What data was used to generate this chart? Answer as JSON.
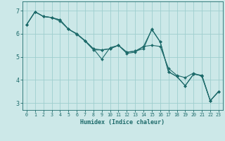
{
  "xlabel": "Humidex (Indice chaleur)",
  "bg_color": "#cce8e8",
  "grid_color": "#9ecece",
  "line_color": "#1e6b6b",
  "xlim": [
    -0.5,
    23.5
  ],
  "ylim": [
    2.7,
    7.4
  ],
  "xticks": [
    0,
    1,
    2,
    3,
    4,
    5,
    6,
    7,
    8,
    9,
    10,
    11,
    12,
    13,
    14,
    15,
    16,
    17,
    18,
    19,
    20,
    21,
    22,
    23
  ],
  "yticks": [
    3,
    4,
    5,
    6,
    7
  ],
  "series": [
    [
      6.4,
      6.95,
      6.75,
      6.7,
      6.6,
      6.2,
      6.0,
      5.7,
      5.35,
      5.3,
      5.35,
      5.5,
      5.2,
      5.25,
      5.45,
      5.5,
      5.45,
      4.5,
      4.2,
      4.1,
      4.3,
      4.15,
      3.1,
      3.5
    ],
    [
      6.4,
      6.95,
      6.75,
      6.7,
      6.6,
      6.2,
      6.0,
      5.7,
      5.35,
      4.9,
      5.4,
      5.5,
      5.2,
      5.25,
      5.35,
      6.2,
      5.65,
      4.35,
      4.15,
      3.75,
      4.25,
      4.2,
      3.1,
      3.5
    ],
    [
      6.4,
      6.95,
      6.75,
      6.7,
      6.55,
      6.2,
      5.98,
      5.68,
      5.3,
      5.3,
      5.35,
      5.5,
      5.15,
      5.2,
      5.45,
      6.18,
      5.65,
      4.35,
      4.15,
      3.75,
      4.25,
      4.2,
      3.1,
      3.5
    ]
  ]
}
